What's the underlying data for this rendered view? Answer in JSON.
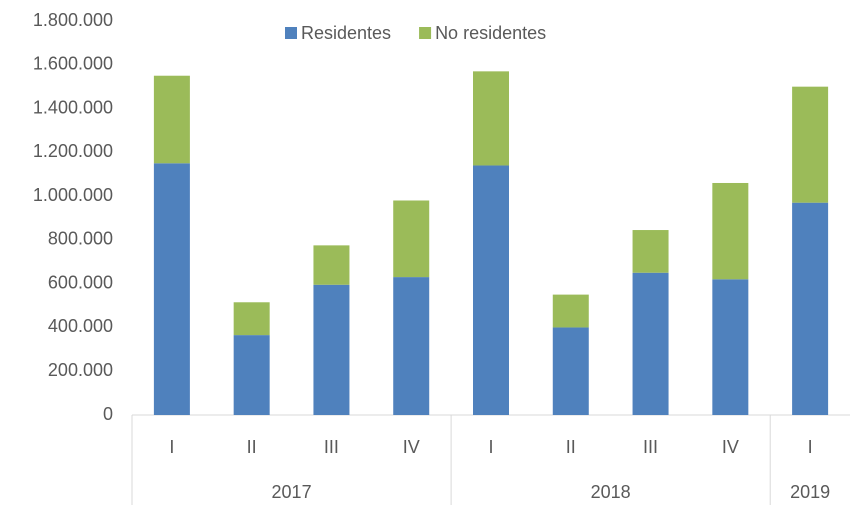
{
  "chart_data": {
    "type": "stacked_bar",
    "groups": [
      {
        "name": "2017",
        "categories": [
          "I",
          "II",
          "III",
          "IV"
        ]
      },
      {
        "name": "2018",
        "categories": [
          "I",
          "II",
          "III",
          "IV"
        ]
      },
      {
        "name": "2019",
        "categories": [
          "I"
        ]
      }
    ],
    "series": [
      {
        "name": "Residentes",
        "color": "#4f81bd",
        "values": [
          1150000,
          365000,
          595000,
          630000,
          1140000,
          400000,
          650000,
          620000,
          970000
        ]
      },
      {
        "name": "No residentes",
        "color": "#9bbb59",
        "values": [
          400000,
          150000,
          180000,
          350000,
          430000,
          150000,
          195000,
          440000,
          530000
        ]
      }
    ],
    "ylim": [
      0,
      1800000
    ],
    "yticks": [
      0,
      {
        "value": 200000,
        "label": "200.000"
      },
      {
        "value": 400000,
        "label": "400.000"
      },
      {
        "value": 600000,
        "label": "600.000"
      },
      {
        "value": 800000,
        "label": "800.000"
      },
      {
        "value": 1000000,
        "label": "1.000.000"
      },
      {
        "value": 1200000,
        "label": "1.200.000"
      },
      {
        "value": 1400000,
        "label": "1.400.000"
      },
      {
        "value": 1600000,
        "label": "1.600.000"
      },
      {
        "value": 1800000,
        "label": "1.800.000"
      }
    ],
    "grid": false,
    "legend": "top"
  }
}
